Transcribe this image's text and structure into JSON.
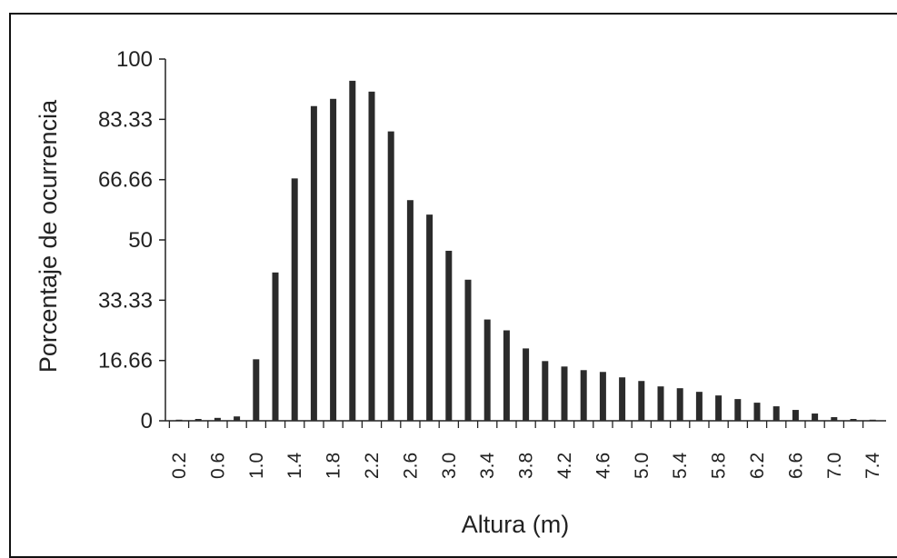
{
  "chart_data": {
    "type": "bar",
    "xlabel": "Altura (m)",
    "ylabel": "Porcentaje de ocurrencia",
    "ylim": [
      0,
      100
    ],
    "yticks": [
      "0",
      "16.66",
      "33.33",
      "50",
      "66.66",
      "83.33",
      "100"
    ],
    "categories": [
      "0.2",
      "0.4",
      "0.6",
      "0.8",
      "1.0",
      "1.2",
      "1.4",
      "1.6",
      "1.8",
      "2.0",
      "2.2",
      "2.4",
      "2.6",
      "2.8",
      "3.0",
      "3.2",
      "3.4",
      "3.6",
      "3.8",
      "4.0",
      "4.2",
      "4.4",
      "4.6",
      "4.8",
      "5.0",
      "5.2",
      "5.4",
      "5.6",
      "5.8",
      "6.0",
      "6.2",
      "6.4",
      "6.6",
      "6.8",
      "7.0",
      "7.2",
      "7.4"
    ],
    "tick_labels_shown": [
      "0.2",
      "",
      "0.6",
      "",
      "1.0",
      "",
      "1.4",
      "",
      "1.8",
      "",
      "2.2",
      "",
      "2.6",
      "",
      "3.0",
      "",
      "3.4",
      "",
      "3.8",
      "",
      "4.2",
      "",
      "4.6",
      "",
      "5.0",
      "",
      "5.4",
      "",
      "5.8",
      "",
      "6.2",
      "",
      "6.6",
      "",
      "7.0",
      "",
      "7.4"
    ],
    "values": [
      0.3,
      0.5,
      0.8,
      1.2,
      17,
      41,
      67,
      87,
      89,
      94,
      91,
      80,
      61,
      57,
      47,
      39,
      28,
      25,
      20,
      16.5,
      15,
      14,
      13.5,
      12,
      11,
      9.5,
      9,
      8,
      7,
      6,
      5,
      4,
      3,
      2,
      1,
      0.5,
      0.3
    ],
    "grid": false,
    "legend": "none"
  },
  "colors": {
    "bar": "#2b2b2b",
    "axis": "#222222",
    "frame": "#111111"
  }
}
